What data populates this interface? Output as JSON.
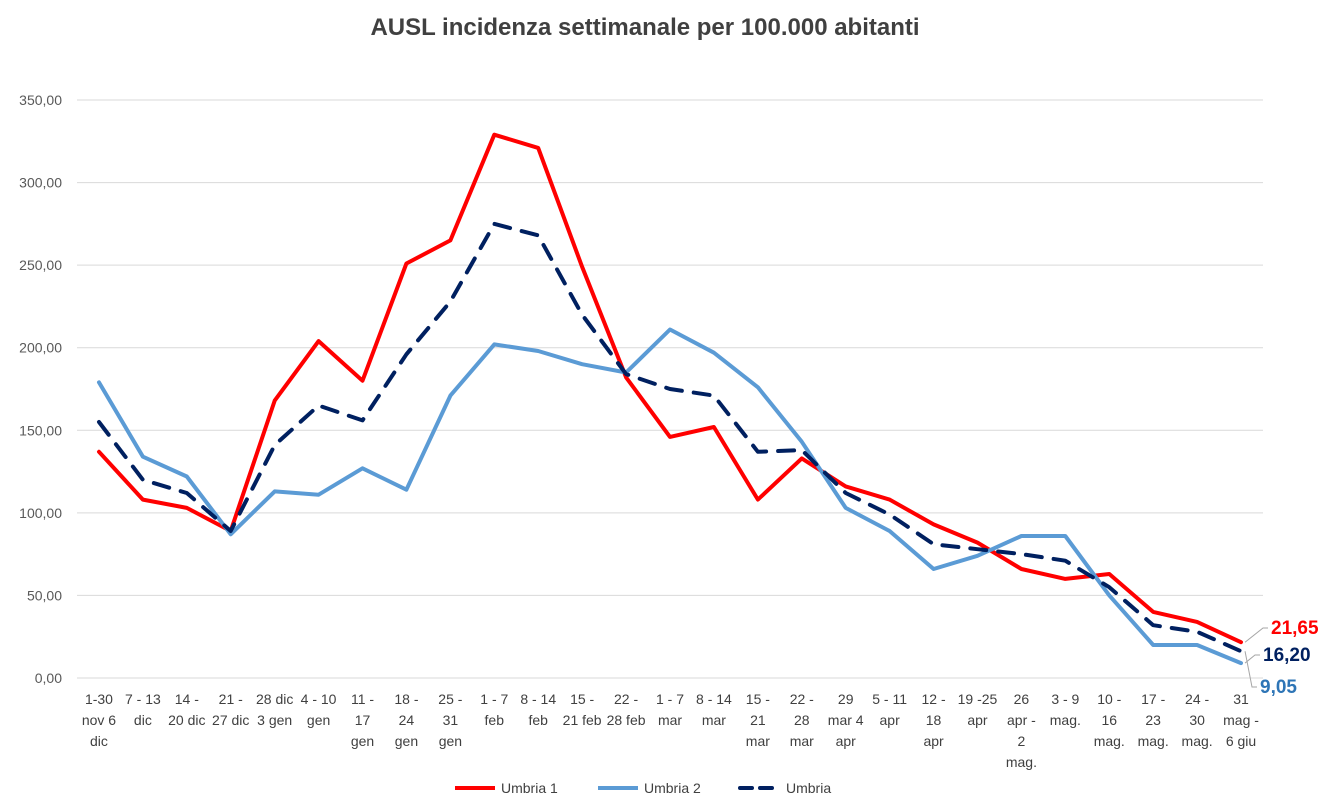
{
  "chart_data": {
    "type": "line",
    "title": "AUSL incidenza settimanale per 100.000 abitanti",
    "categories": [
      "1-30 nov 6 dic",
      "7 - 13 dic",
      "14 - 20 dic",
      "21 - 27 dic",
      "28 dic 3 gen",
      "4 - 10 gen",
      "11 - 17 gen",
      "18 - 24 gen",
      "25 - 31 gen",
      "1 - 7 feb",
      "8 - 14 feb",
      "15 - 21 feb",
      "22 - 28 feb",
      "1 - 7 mar",
      "8 - 14 mar",
      "15 - 21 mar",
      "22 - 28 mar",
      "29 mar 4 apr",
      "5 - 11 apr",
      "12 - 18 apr",
      "19 -25 apr",
      "26 apr - 2 mag.",
      "3 - 9 mag.",
      "10 - 16 mag.",
      "17 - 23 mag.",
      "24 - 30 mag.",
      "31 mag - 6 giu"
    ],
    "category_lines": [
      [
        "1-30",
        "nov 6",
        "dic"
      ],
      [
        "7 - 13",
        "dic"
      ],
      [
        "14 -",
        "20 dic"
      ],
      [
        "21 -",
        "27 dic"
      ],
      [
        "28 dic",
        "3 gen"
      ],
      [
        "4 - 10",
        "gen"
      ],
      [
        "11 -",
        "17",
        "gen"
      ],
      [
        "18 -",
        "24",
        "gen"
      ],
      [
        "25 -",
        "31",
        "gen"
      ],
      [
        "1 - 7",
        "feb"
      ],
      [
        "8 - 14",
        "feb"
      ],
      [
        "15 -",
        "21 feb"
      ],
      [
        "22 -",
        "28 feb"
      ],
      [
        "1 - 7",
        "mar"
      ],
      [
        "8 - 14",
        "mar"
      ],
      [
        "15 -",
        "21",
        "mar"
      ],
      [
        "22 -",
        "28",
        "mar"
      ],
      [
        "29",
        "mar 4",
        "apr"
      ],
      [
        "5 - 11",
        "apr"
      ],
      [
        "12 -",
        "18",
        "apr"
      ],
      [
        "19 -25",
        "apr"
      ],
      [
        "26",
        "apr -",
        "2",
        "mag."
      ],
      [
        "3 - 9",
        "mag."
      ],
      [
        "10 -",
        "16",
        "mag."
      ],
      [
        "17 -",
        "23",
        "mag."
      ],
      [
        "24 -",
        "30",
        "mag."
      ],
      [
        "31",
        "mag -",
        "6 giu"
      ]
    ],
    "series": [
      {
        "name": "Umbria 1",
        "color": "#ff0000",
        "style": "solid",
        "values": [
          137,
          108,
          103,
          89,
          168,
          204,
          180,
          251,
          265,
          329,
          321,
          249,
          182,
          146,
          152,
          108,
          133,
          116,
          108,
          93,
          82,
          66,
          60,
          63,
          40,
          34,
          21.65
        ]
      },
      {
        "name": "Umbria 2",
        "color": "#5b9bd5",
        "style": "solid",
        "values": [
          179,
          134,
          122,
          87,
          113,
          111,
          127,
          114,
          171,
          202,
          198,
          190,
          185,
          211,
          197,
          176,
          143,
          103,
          89,
          66,
          74,
          86,
          86,
          50,
          20,
          20,
          9.05
        ]
      },
      {
        "name": "Umbria",
        "color": "#002060",
        "style": "dashed",
        "values": [
          155,
          120,
          112,
          89,
          141,
          165,
          156,
          196,
          228,
          275,
          268,
          220,
          184,
          175,
          171,
          137,
          138,
          112,
          99,
          81,
          78,
          75,
          71,
          55,
          32,
          28,
          16.2
        ]
      }
    ],
    "end_labels": [
      {
        "text": "21,65",
        "color": "#ff0000"
      },
      {
        "text": "16,20",
        "color": "#002060"
      },
      {
        "text": "9,05",
        "color": "#2e75b6"
      }
    ],
    "y_ticks": [
      "0,00",
      "50,00",
      "100,00",
      "150,00",
      "200,00",
      "250,00",
      "300,00",
      "350,00"
    ],
    "ylim": [
      0,
      350
    ],
    "grid": true,
    "legend_position": "bottom"
  }
}
